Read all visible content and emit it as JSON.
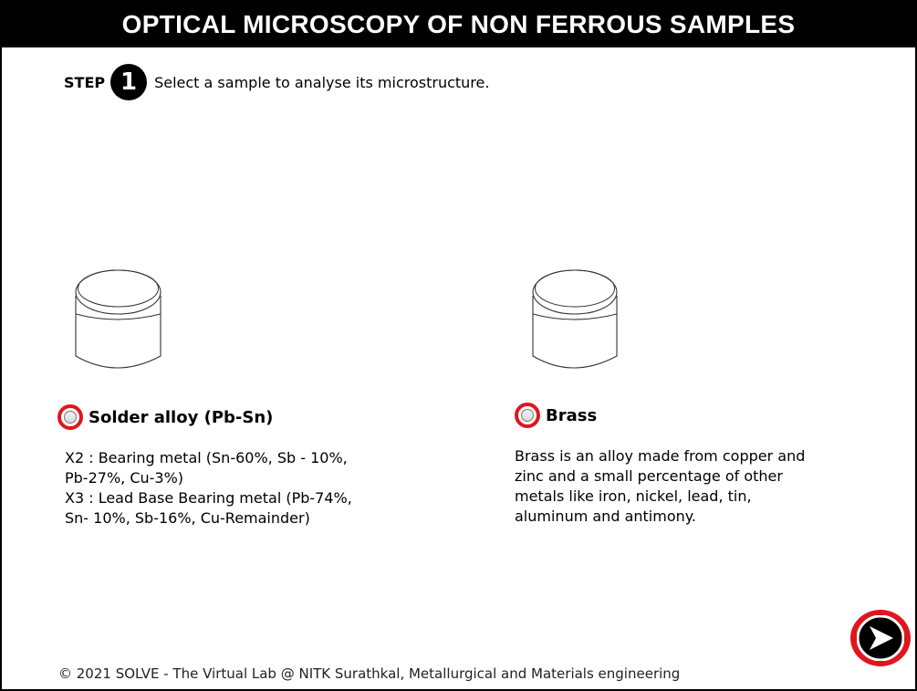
{
  "header": {
    "title": "OPTICAL MICROSCOPY OF NON FERROUS SAMPLES"
  },
  "step": {
    "label": "STEP",
    "number": "1",
    "instruction": "Select a sample to analyse its microstructure."
  },
  "samples": [
    {
      "name": "Solder alloy (Pb-Sn)",
      "selected": false,
      "description_lines": [
        "X2 : Bearing metal (Sn-60%, Sb - 10%,",
        "Pb-27%, Cu-3%)",
        "X3 : Lead Base Bearing metal (Pb-74%,",
        "Sn- 10%, Sb-16%, Cu-Remainder)"
      ]
    },
    {
      "name": "Brass",
      "selected": false,
      "description_lines": [
        "Brass is an alloy made from copper and",
        "zinc and a small percentage of other",
        "metals like iron, nickel, lead, tin,",
        "aluminum and antimony."
      ]
    }
  ],
  "navigation": {
    "next_icon": "next-arrow-icon"
  },
  "footer": {
    "text": "© 2021 SOLVE - The Virtual Lab @ NITK Surathkal, Metallurgical and Materials engineering"
  },
  "colors": {
    "accent_red": "#e0161f",
    "header_bg": "#000000"
  }
}
